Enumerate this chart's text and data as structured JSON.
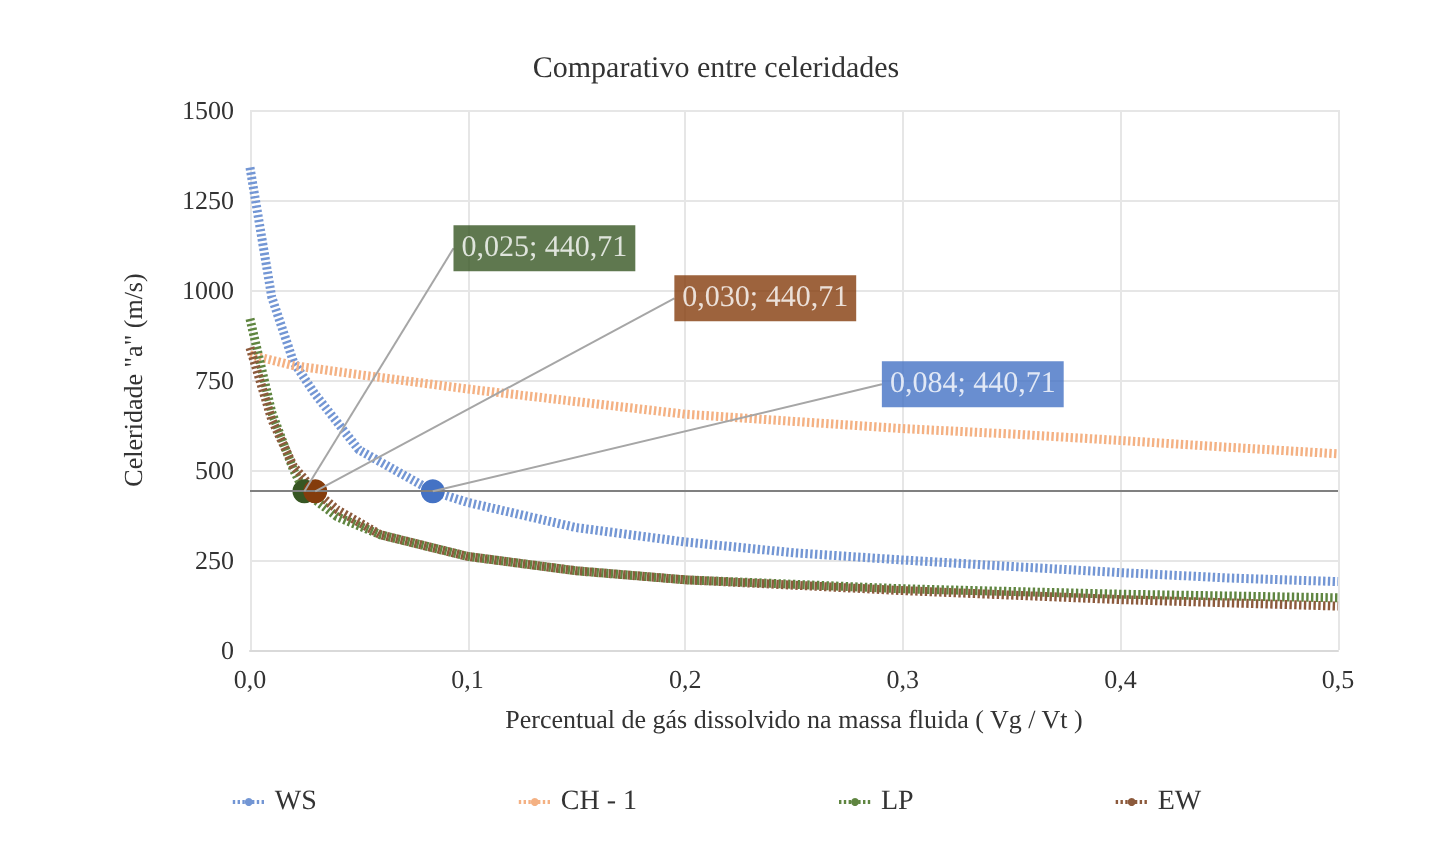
{
  "chart_data": {
    "type": "line",
    "title": "Comparativo entre celeridades",
    "xlabel": "Percentual de gás dissolvido na massa fluida ( Vg / Vt )",
    "ylabel": "Celeridade \"a\" (m/s)",
    "xlim": [
      0,
      0.5
    ],
    "xticks": [
      {
        "value": 0,
        "label": "0,0"
      },
      {
        "value": 0.1,
        "label": "0,1"
      },
      {
        "value": 0.2,
        "label": "0,2"
      },
      {
        "value": 0.3,
        "label": "0,3"
      },
      {
        "value": 0.4,
        "label": "0,4"
      },
      {
        "value": 0.5,
        "label": "0,5"
      }
    ],
    "ylim": [
      0,
      1500
    ],
    "yticks": [
      0,
      250,
      500,
      750,
      1000,
      1250,
      1500
    ],
    "grid": true,
    "legend": "bottom",
    "line_style": "dotted",
    "marker": "none",
    "series": [
      {
        "name": "WS",
        "color": "#7396d4",
        "x": [
          0,
          0.01,
          0.02,
          0.03,
          0.05,
          0.084,
          0.1,
          0.15,
          0.2,
          0.25,
          0.3,
          0.35,
          0.4,
          0.45,
          0.5
        ],
        "values": [
          1340,
          980,
          800,
          710,
          556,
          440.71,
          410,
          340,
          300,
          270,
          250,
          232,
          215,
          200,
          190
        ]
      },
      {
        "name": "CH - 1",
        "color": "#f4b183",
        "x": [
          0,
          0.02,
          0.05,
          0.1,
          0.15,
          0.2,
          0.25,
          0.3,
          0.35,
          0.4,
          0.45,
          0.5
        ],
        "values": [
          820,
          790,
          765,
          725,
          690,
          655,
          635,
          615,
          600,
          582,
          563,
          545
        ]
      },
      {
        "name": "LP",
        "color": "#5f8540",
        "x": [
          0,
          0.01,
          0.02,
          0.025,
          0.04,
          0.06,
          0.1,
          0.15,
          0.2,
          0.3,
          0.4,
          0.5
        ],
        "values": [
          920,
          660,
          500,
          440.71,
          370,
          320,
          260,
          220,
          195,
          170,
          155,
          145
        ]
      },
      {
        "name": "EW",
        "color": "#8c5a3c",
        "x": [
          0,
          0.01,
          0.02,
          0.03,
          0.04,
          0.06,
          0.1,
          0.15,
          0.2,
          0.3,
          0.4,
          0.5
        ],
        "values": [
          840,
          640,
          510,
          440.71,
          390,
          320,
          260,
          220,
          195,
          165,
          140,
          122
        ]
      },
      {
        "type": "scatter",
        "color": "#375623",
        "marker": "circle",
        "x": [
          0.025
        ],
        "values": [
          440.71
        ]
      },
      {
        "type": "scatter",
        "color": "#843c0c",
        "marker": "circle",
        "x": [
          0.03
        ],
        "values": [
          440.71
        ]
      },
      {
        "type": "scatter",
        "color": "#4472c4",
        "marker": "circle",
        "x": [
          0.084
        ],
        "values": [
          440.71
        ]
      }
    ],
    "ref_lines": [
      {
        "axis": "y",
        "value": 440.71,
        "color": "#808080"
      }
    ],
    "annotations": [
      {
        "text": "0,025; 440,71",
        "x": 0.025,
        "y": 440.71
      },
      {
        "text": "0,030; 440,71",
        "x": 0.03,
        "y": 440.71
      },
      {
        "text": "0,084; 440,71",
        "x": 0.084,
        "y": 440.71
      }
    ]
  }
}
